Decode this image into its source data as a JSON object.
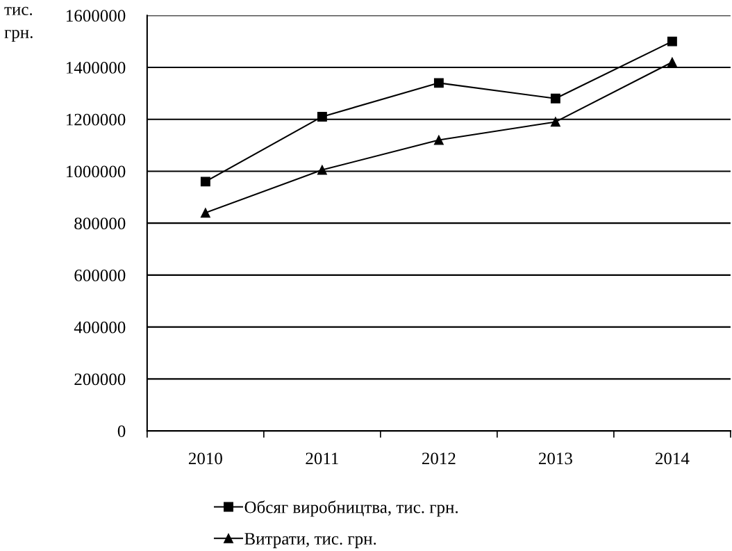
{
  "chart_data": {
    "type": "line",
    "ylabel": "тис. грн.",
    "categories": [
      "2010",
      "2011",
      "2012",
      "2013",
      "2014"
    ],
    "series": [
      {
        "name": "Обсяг виробництва, тис. грн.",
        "color": "#000000",
        "marker": "square",
        "values": [
          960000,
          1210000,
          1340000,
          1280000,
          1500000
        ]
      },
      {
        "name": "Витрати, тис. грн.",
        "color": "#000000",
        "marker": "triangle",
        "values": [
          840000,
          1005000,
          1120000,
          1190000,
          1420000
        ]
      }
    ],
    "ylim": [
      0,
      1600000
    ],
    "yticks": [
      0,
      200000,
      400000,
      600000,
      800000,
      1000000,
      1200000,
      1400000,
      1600000
    ],
    "grid": "y",
    "legend": "bottom",
    "line_style": "solid"
  }
}
